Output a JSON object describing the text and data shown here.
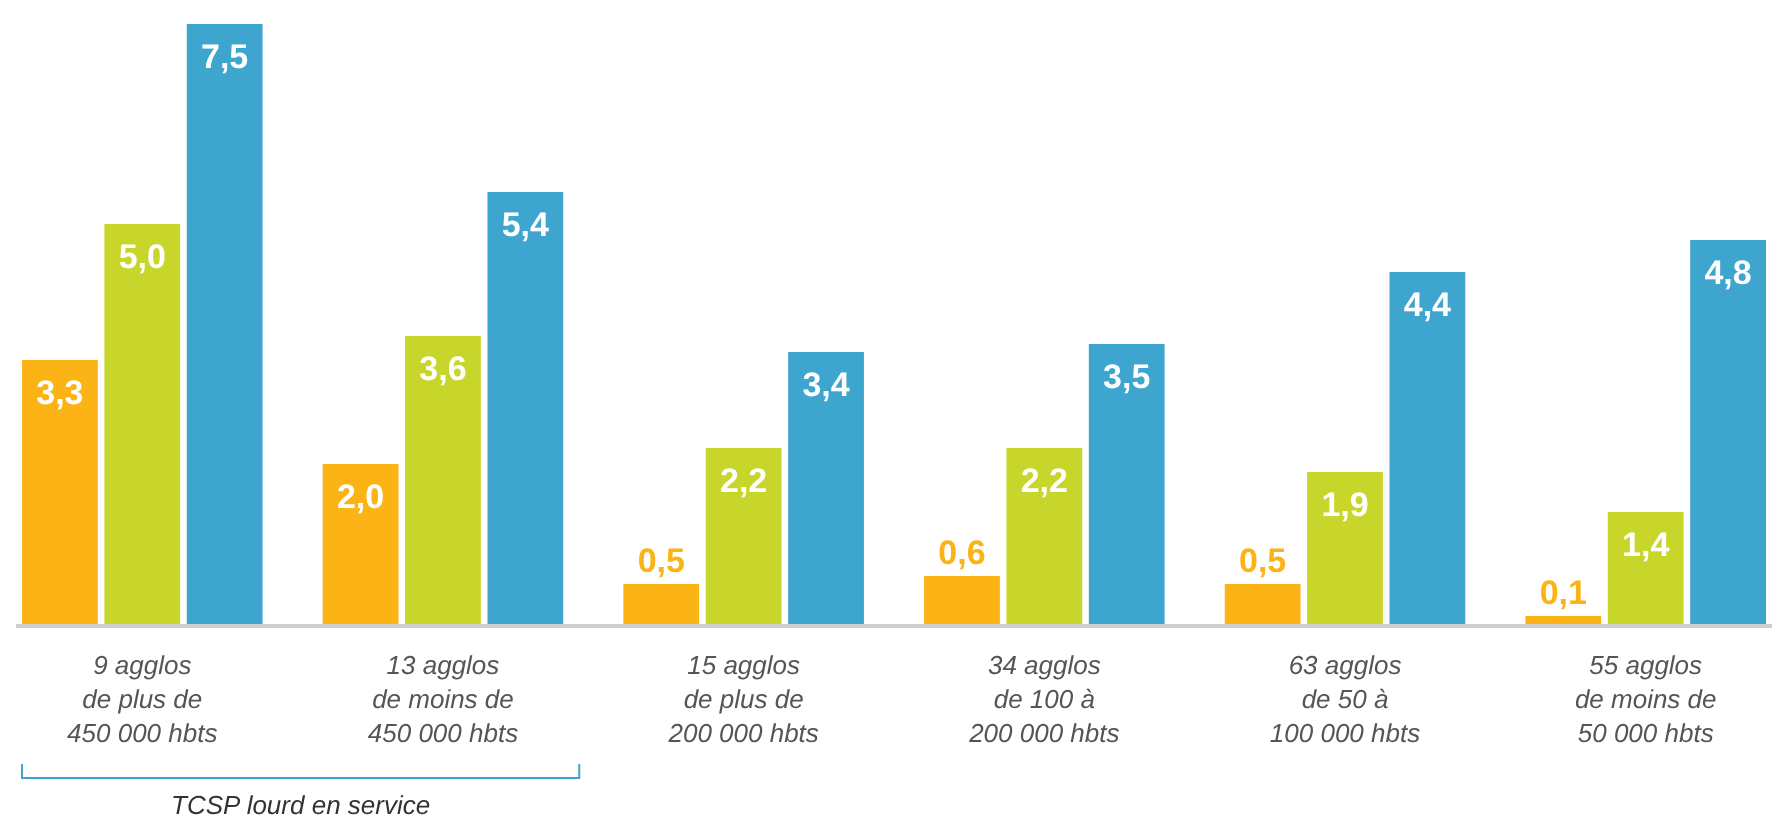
{
  "chart_data": {
    "type": "bar",
    "categories": [
      "9 agglos\nde plus de\n450 000 hbts",
      "13 agglos\nde moins de\n450 000 hbts",
      "15 agglos\nde plus de\n200 000 hbts",
      "34 agglos\nde 100 à\n200 000 hbts",
      "63 agglos\nde 50 à\n100 000 hbts",
      "55 agglos\nde moins de\n50 000 hbts"
    ],
    "series": [
      {
        "color": "#fbb316",
        "values": [
          3.3,
          2.0,
          0.5,
          0.6,
          0.5,
          0.1
        ],
        "value_labels": [
          "3,3",
          "2,0",
          "0,5",
          "0,6",
          "0,5",
          "0,1"
        ]
      },
      {
        "color": "#c8d62b",
        "values": [
          5.0,
          3.6,
          2.2,
          2.2,
          1.9,
          1.4
        ],
        "value_labels": [
          "5,0",
          "3,6",
          "2,2",
          "2,2",
          "1,9",
          "1,4"
        ]
      },
      {
        "color": "#3ea5cf",
        "values": [
          7.5,
          5.4,
          3.4,
          3.5,
          4.4,
          4.8
        ],
        "value_labels": [
          "7,5",
          "5,4",
          "3,4",
          "3,5",
          "4,4",
          "4,8"
        ]
      }
    ],
    "annotations": [
      "TCSP lourd en service"
    ]
  }
}
